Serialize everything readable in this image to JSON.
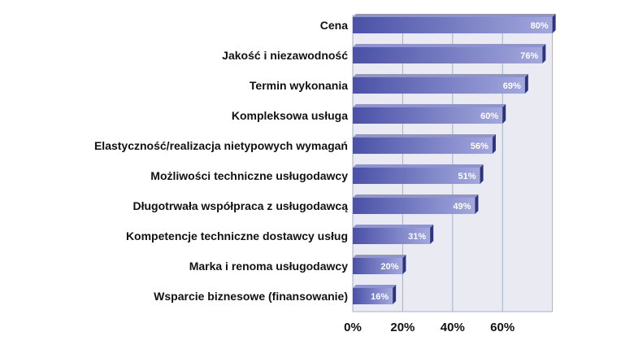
{
  "chart_data": {
    "type": "bar",
    "orientation": "horizontal",
    "categories": [
      "Cena",
      "Jakość i niezawodność",
      "Termin wykonania",
      "Kompleksowa usługa",
      "Elastyczność/realizacja nietypowych wymagań",
      "Możliwości techniczne usługodawcy",
      "Długotrwała współpraca z usługodawcą",
      "Kompetencje techniczne dostawcy usług",
      "Marka i renoma usługodawcy",
      "Wsparcie biznesowe (finansowanie)"
    ],
    "values": [
      80,
      76,
      69,
      60,
      56,
      51,
      49,
      31,
      20,
      16
    ],
    "value_labels": [
      "80%",
      "76%",
      "69%",
      "60%",
      "56%",
      "51%",
      "49%",
      "31%",
      "20%",
      "16%"
    ],
    "x_ticks": [
      "0%",
      "20%",
      "40%",
      "60%"
    ],
    "x_tick_values": [
      0,
      20,
      40,
      60
    ],
    "xlim": [
      0,
      80
    ],
    "grid": "vertical",
    "colors": {
      "plot_background": "#eaeaf2",
      "bar_light": "#a3a8dd",
      "bar_dark": "#4a51a6",
      "bar_top": "#8e94d0",
      "bar_side": "#2e3478",
      "gridline": "#9fb3c8",
      "data_label": "#ffffff"
    }
  }
}
